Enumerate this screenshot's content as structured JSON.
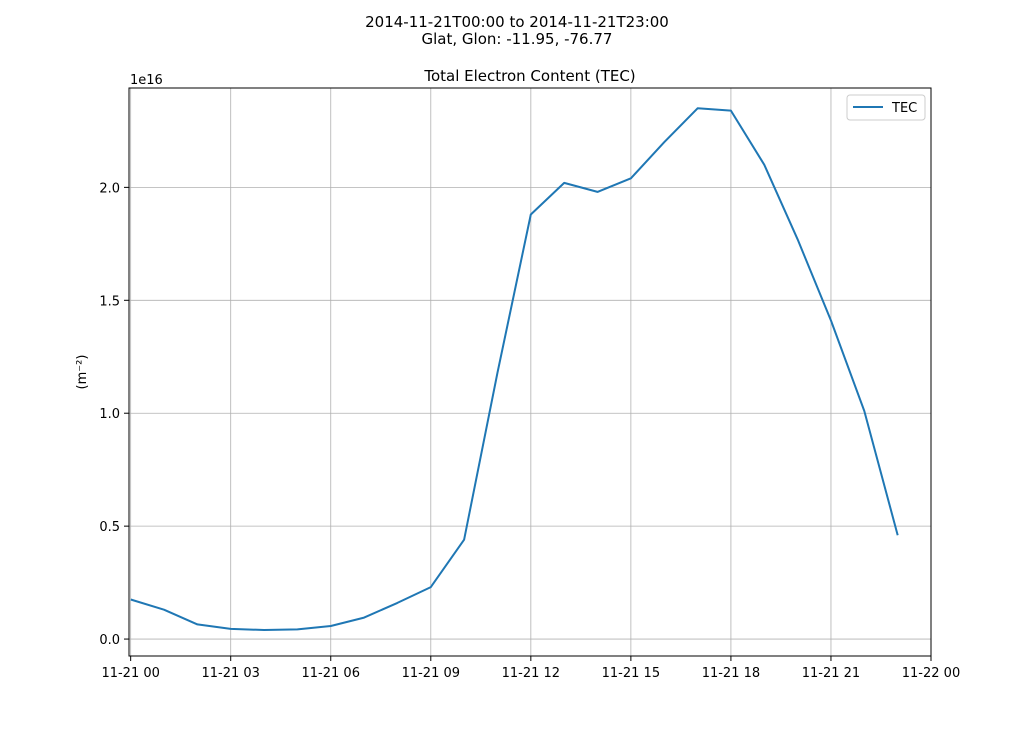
{
  "chart_data": {
    "type": "line",
    "suptitle_line1": "2014-11-21T00:00 to 2014-11-21T23:00",
    "suptitle_line2": "Glat, Glon: -11.95, -76.77",
    "title": "Total Electron Content (TEC)",
    "xlabel": "",
    "ylabel": "(m⁻²)",
    "y_offset_label": "1e16",
    "xlim": [
      -0.05,
      24
    ],
    "ylim": [
      -0.075,
      2.44
    ],
    "grid": true,
    "legend_position": "top-right",
    "x_tick_values": [
      0,
      3,
      6,
      9,
      12,
      15,
      18,
      21,
      24
    ],
    "x_tick_labels": [
      "11-21 00",
      "11-21 03",
      "11-21 06",
      "11-21 09",
      "11-21 12",
      "11-21 15",
      "11-21 18",
      "11-21 21",
      "11-22 00"
    ],
    "y_tick_values": [
      0.0,
      0.5,
      1.0,
      1.5,
      2.0
    ],
    "y_tick_labels": [
      "0.0",
      "0.5",
      "1.0",
      "1.5",
      "2.0"
    ],
    "x": [
      0,
      1,
      2,
      3,
      4,
      5,
      6,
      7,
      8,
      9,
      10,
      11,
      12,
      13,
      14,
      15,
      16,
      17,
      18,
      19,
      20,
      21,
      22,
      23
    ],
    "series": [
      {
        "name": "TEC",
        "color": "#1f77b4",
        "values": [
          0.175,
          0.13,
          0.065,
          0.045,
          0.04,
          0.043,
          0.058,
          0.095,
          0.16,
          0.23,
          0.44,
          1.18,
          1.88,
          2.02,
          1.98,
          2.04,
          2.2,
          2.35,
          2.34,
          2.1,
          1.77,
          1.41,
          1.01,
          0.46
        ]
      }
    ]
  }
}
